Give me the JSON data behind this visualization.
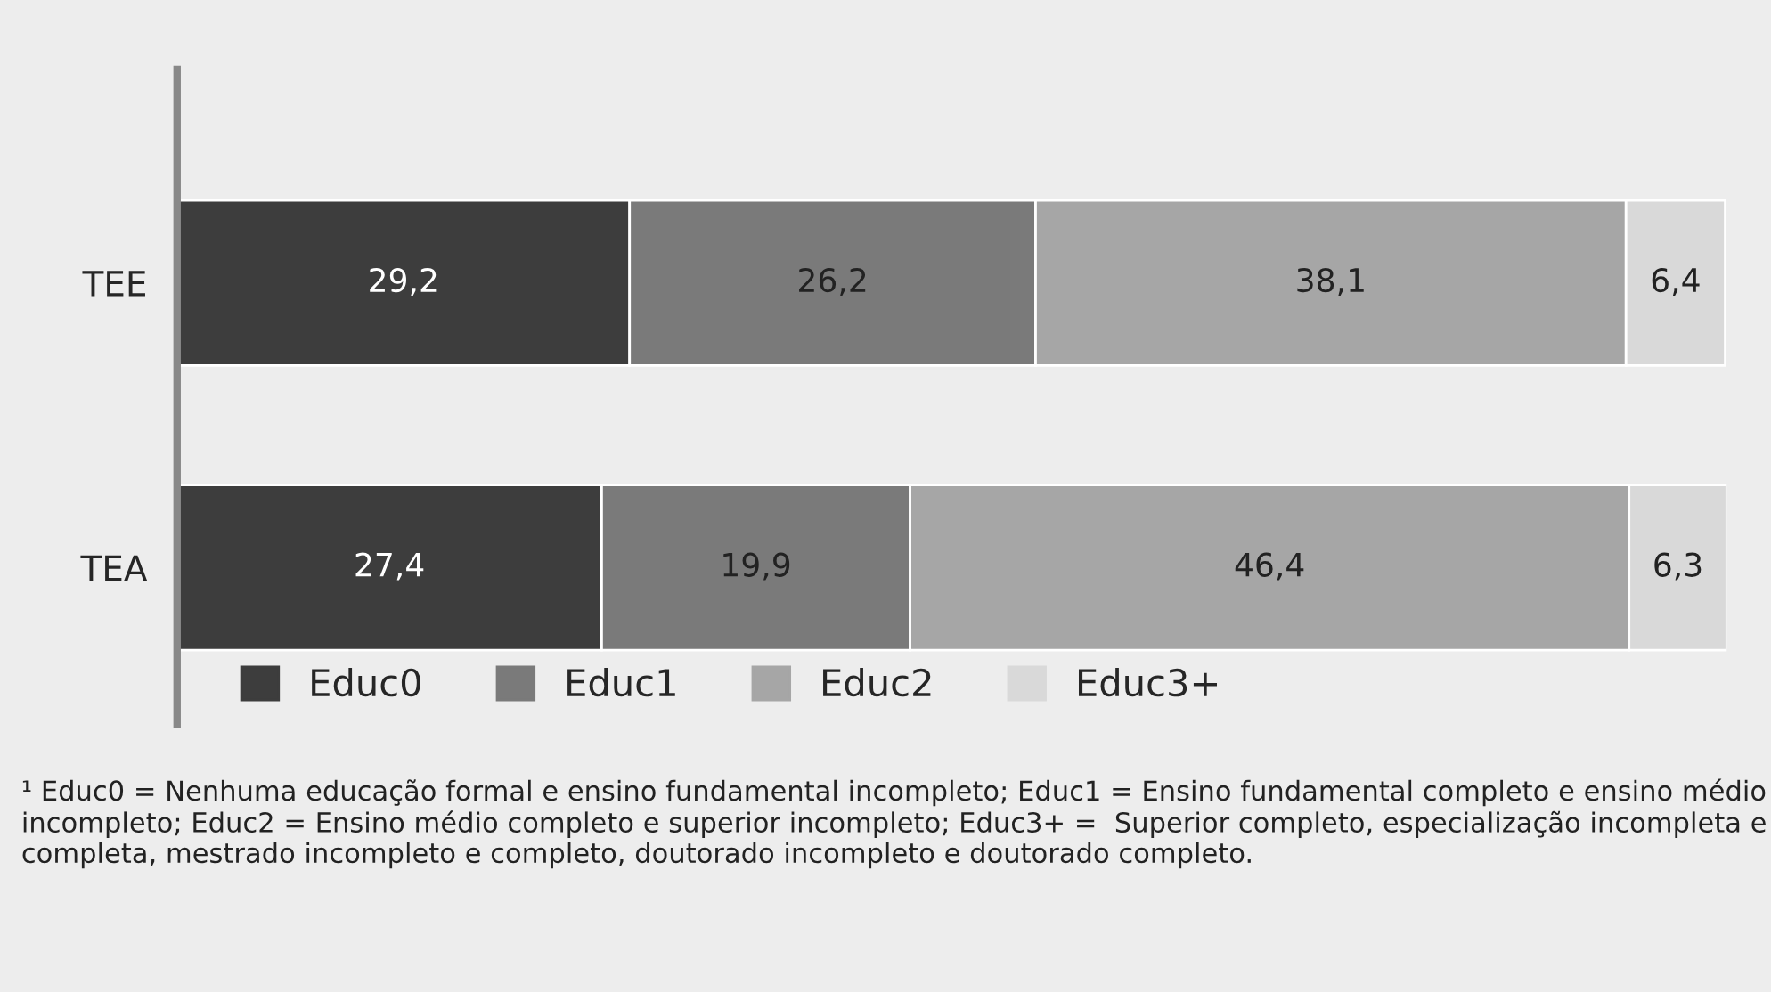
{
  "chart_data": {
    "type": "bar",
    "orientation": "horizontal",
    "stacked": true,
    "data_labels": true,
    "legend": "bottom",
    "grid": false,
    "categories": [
      "TEE",
      "TEA"
    ],
    "series": [
      {
        "name": "Educ0",
        "color": "#3d3d3d",
        "values": [
          29.2,
          27.4
        ],
        "value_labels": [
          "29,2",
          "27,4"
        ]
      },
      {
        "name": "Educ1",
        "color": "#7a7a7a",
        "values": [
          26.2,
          19.9
        ],
        "value_labels": [
          "26,2",
          "19,9"
        ]
      },
      {
        "name": "Educ2",
        "color": "#a6a6a6",
        "values": [
          38.1,
          46.4
        ],
        "value_labels": [
          "38,1",
          "46,4"
        ]
      },
      {
        "name": "Educ3+",
        "color": "#d9d9d9",
        "values": [
          6.4,
          6.3
        ],
        "value_labels": [
          "6,4",
          "6,3"
        ]
      }
    ],
    "annotations": [
      "¹ Educ0 = Nenhuma educação formal e ensino fundamental incompleto; Educ1 = Ensino fundamental completo e ensino médio incompleto; Educ2 = Ensino médio completo e superior incompleto; Educ3+ =  Superior completo, especialização incompleta e completa, mestrado incompleto e completo, doutorado incompleto e doutorado completo."
    ]
  }
}
